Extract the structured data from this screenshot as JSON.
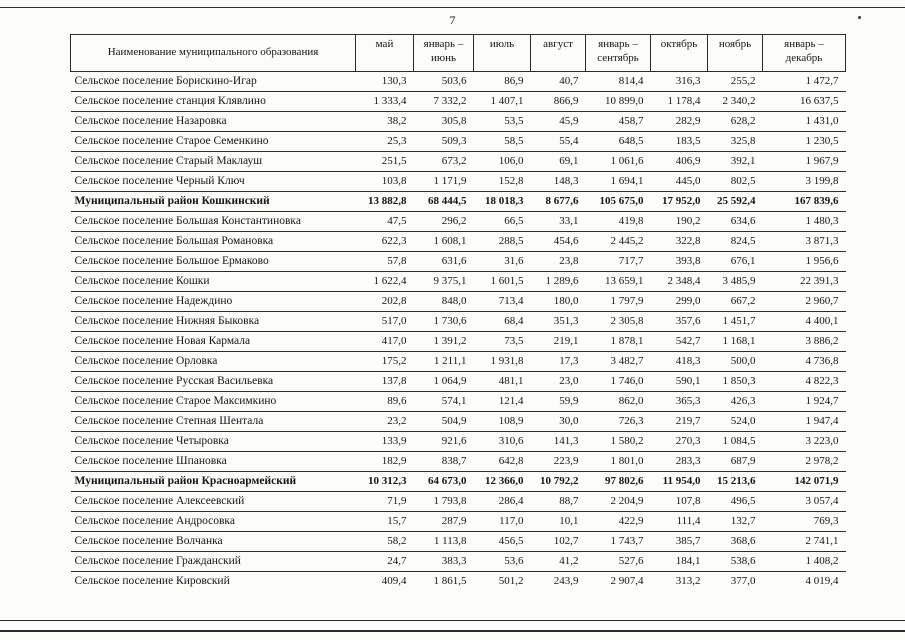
{
  "page": {
    "number": "7"
  },
  "table": {
    "columns": [
      "Наименование муниципального образования",
      "май",
      "январь –\nиюнь",
      "июль",
      "август",
      "январь –\nсентябрь",
      "октябрь",
      "ноябрь",
      "январь –\nдекабрь"
    ],
    "rows": [
      {
        "name": "Сельское поселение Борискино-Игар",
        "bold": false,
        "values": [
          "130,3",
          "503,6",
          "86,9",
          "40,7",
          "814,4",
          "316,3",
          "255,2",
          "1 472,7"
        ]
      },
      {
        "name": "Сельское поселение станция Клявлино",
        "bold": false,
        "values": [
          "1 333,4",
          "7 332,2",
          "1 407,1",
          "866,9",
          "10 899,0",
          "1 178,4",
          "2 340,2",
          "16 637,5"
        ]
      },
      {
        "name": "Сельское поселение Назаровка",
        "bold": false,
        "values": [
          "38,2",
          "305,8",
          "53,5",
          "45,9",
          "458,7",
          "282,9",
          "628,2",
          "1 431,0"
        ]
      },
      {
        "name": "Сельское поселение Старое Семенкино",
        "bold": false,
        "values": [
          "25,3",
          "509,3",
          "58,5",
          "55,4",
          "648,5",
          "183,5",
          "325,8",
          "1 230,5"
        ]
      },
      {
        "name": "Сельское поселение Старый Маклауш",
        "bold": false,
        "values": [
          "251,5",
          "673,2",
          "106,0",
          "69,1",
          "1 061,6",
          "406,9",
          "392,1",
          "1 967,9"
        ]
      },
      {
        "name": "Сельское поселение Черный Ключ",
        "bold": false,
        "values": [
          "103,8",
          "1 171,9",
          "152,8",
          "148,3",
          "1 694,1",
          "445,0",
          "802,5",
          "3 199,8"
        ]
      },
      {
        "name": "Муниципальный район Кошкинский",
        "bold": true,
        "values": [
          "13 882,8",
          "68 444,5",
          "18 018,3",
          "8 677,6",
          "105 675,0",
          "17 952,0",
          "25 592,4",
          "167 839,6"
        ]
      },
      {
        "name": "Сельское поселение Большая Константиновка",
        "bold": false,
        "values": [
          "47,5",
          "296,2",
          "66,5",
          "33,1",
          "419,8",
          "190,2",
          "634,6",
          "1 480,3"
        ]
      },
      {
        "name": "Сельское поселение Большая Романовка",
        "bold": false,
        "values": [
          "622,3",
          "1 608,1",
          "288,5",
          "454,6",
          "2 445,2",
          "322,8",
          "824,5",
          "3 871,3"
        ]
      },
      {
        "name": "Сельское поселение Большое Ермаково",
        "bold": false,
        "values": [
          "57,8",
          "631,6",
          "31,6",
          "23,8",
          "717,7",
          "393,8",
          "676,1",
          "1 956,6"
        ]
      },
      {
        "name": "Сельское поселение Кошки",
        "bold": false,
        "values": [
          "1 622,4",
          "9 375,1",
          "1 601,5",
          "1 289,6",
          "13 659,1",
          "2 348,4",
          "3 485,9",
          "22 391,3"
        ]
      },
      {
        "name": "Сельское поселение Надеждино",
        "bold": false,
        "values": [
          "202,8",
          "848,0",
          "713,4",
          "180,0",
          "1 797,9",
          "299,0",
          "667,2",
          "2 960,7"
        ]
      },
      {
        "name": "Сельское поселение Нижняя Быковка",
        "bold": false,
        "values": [
          "517,0",
          "1 730,6",
          "68,4",
          "351,3",
          "2 305,8",
          "357,6",
          "1 451,7",
          "4 400,1"
        ]
      },
      {
        "name": "Сельское поселение Новая Кармала",
        "bold": false,
        "values": [
          "417,0",
          "1 391,2",
          "73,5",
          "219,1",
          "1 878,1",
          "542,7",
          "1 168,1",
          "3 886,2"
        ]
      },
      {
        "name": "Сельское поселение Орловка",
        "bold": false,
        "values": [
          "175,2",
          "1 211,1",
          "1 931,8",
          "17,3",
          "3 482,7",
          "418,3",
          "500,0",
          "4 736,8"
        ]
      },
      {
        "name": "Сельское поселение Русская Васильевка",
        "bold": false,
        "values": [
          "137,8",
          "1 064,9",
          "481,1",
          "23,0",
          "1 746,0",
          "590,1",
          "1 850,3",
          "4 822,3"
        ]
      },
      {
        "name": "Сельское поселение Старое Максимкино",
        "bold": false,
        "values": [
          "89,6",
          "574,1",
          "121,4",
          "59,9",
          "862,0",
          "365,3",
          "426,3",
          "1 924,7"
        ]
      },
      {
        "name": "Сельское поселение Степная Шентала",
        "bold": false,
        "values": [
          "23,2",
          "504,9",
          "108,9",
          "30,0",
          "726,3",
          "219,7",
          "524,0",
          "1 947,4"
        ]
      },
      {
        "name": "Сельское поселение Четыровка",
        "bold": false,
        "values": [
          "133,9",
          "921,6",
          "310,6",
          "141,3",
          "1 580,2",
          "270,3",
          "1 084,5",
          "3 223,0"
        ]
      },
      {
        "name": "Сельское поселение Шпановка",
        "bold": false,
        "values": [
          "182,9",
          "838,7",
          "642,8",
          "223,9",
          "1 801,0",
          "283,3",
          "687,9",
          "2 978,2"
        ]
      },
      {
        "name": "Муниципальный район Красноармейский",
        "bold": true,
        "values": [
          "10 312,3",
          "64 673,0",
          "12 366,0",
          "10 792,2",
          "97 802,6",
          "11 954,0",
          "15 213,6",
          "142 071,9"
        ]
      },
      {
        "name": "Сельское поселение Алексеевский",
        "bold": false,
        "values": [
          "71,9",
          "1 793,8",
          "286,4",
          "88,7",
          "2 204,9",
          "107,8",
          "496,5",
          "3 057,4"
        ]
      },
      {
        "name": "Сельское поселение Андросовка",
        "bold": false,
        "values": [
          "15,7",
          "287,9",
          "117,0",
          "10,1",
          "422,9",
          "111,4",
          "132,7",
          "769,3"
        ]
      },
      {
        "name": "Сельское поселение Волчанка",
        "bold": false,
        "values": [
          "58,2",
          "1 113,8",
          "456,5",
          "102,7",
          "1 743,7",
          "385,7",
          "368,6",
          "2 741,1"
        ]
      },
      {
        "name": "Сельское поселение Гражданский",
        "bold": false,
        "values": [
          "24,7",
          "383,3",
          "53,6",
          "41,2",
          "527,6",
          "184,1",
          "538,6",
          "1 408,2"
        ]
      },
      {
        "name": "Сельское поселение Кировский",
        "bold": false,
        "values": [
          "409,4",
          "1 861,5",
          "501,2",
          "243,9",
          "2 907,4",
          "313,2",
          "377,0",
          "4 019,4"
        ]
      }
    ]
  }
}
